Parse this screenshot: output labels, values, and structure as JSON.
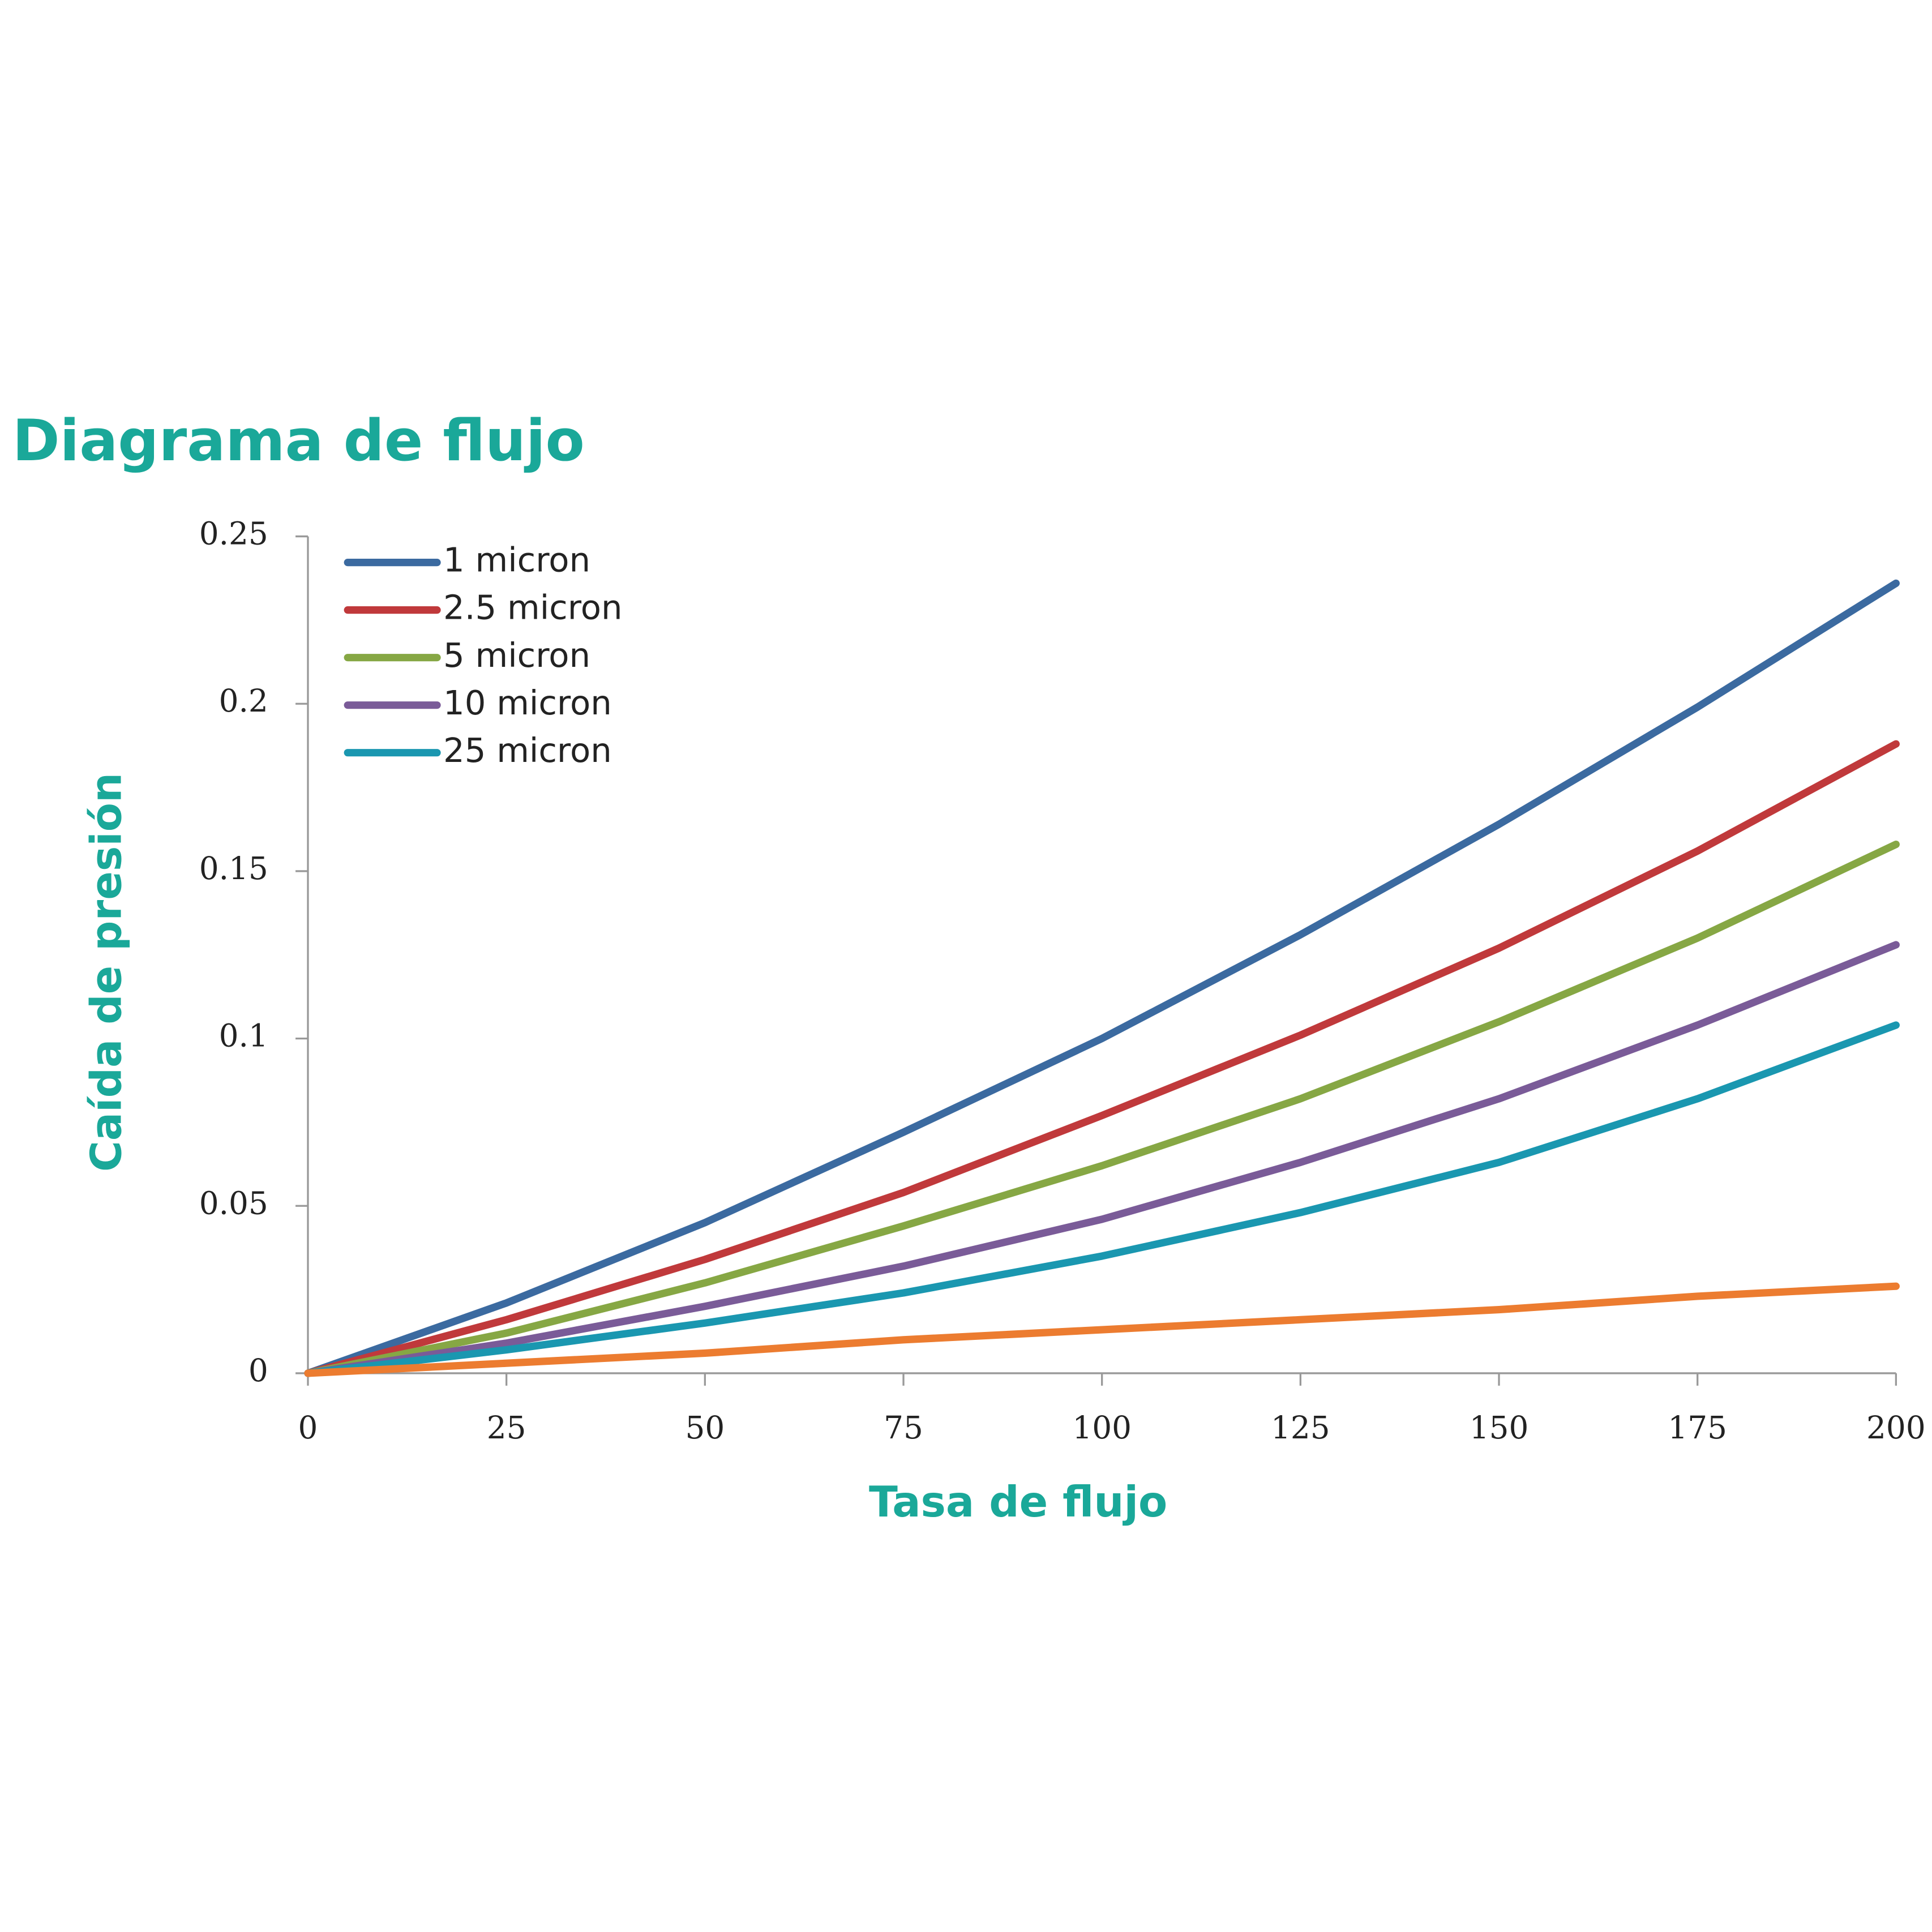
{
  "chart_data": {
    "type": "line",
    "title": "Diagrama de flujo",
    "x_label": "Tasa de flujo",
    "y_label": "Caída de presión",
    "x": [
      0,
      25,
      50,
      75,
      100,
      125,
      150,
      175,
      200
    ],
    "series": [
      {
        "name": "1 micron",
        "color": "#3b6aa0",
        "values": [
          0,
          0.021,
          0.045,
          0.072,
          0.1,
          0.131,
          0.164,
          0.199,
          0.236
        ]
      },
      {
        "name": "2.5 micron",
        "color": "#c0393b",
        "values": [
          0,
          0.016,
          0.034,
          0.054,
          0.077,
          0.101,
          0.127,
          0.156,
          0.188
        ]
      },
      {
        "name": "5 micron",
        "color": "#86a744",
        "values": [
          0,
          0.012,
          0.027,
          0.044,
          0.062,
          0.082,
          0.105,
          0.13,
          0.158
        ]
      },
      {
        "name": "10 micron",
        "color": "#7a5b98",
        "values": [
          0,
          0.009,
          0.02,
          0.032,
          0.046,
          0.063,
          0.082,
          0.104,
          0.128
        ]
      },
      {
        "name": "25 micron",
        "color": "#1a97b0",
        "values": [
          0,
          0.007,
          0.015,
          0.024,
          0.035,
          0.048,
          0.063,
          0.082,
          0.104
        ]
      },
      {
        "color": "#ec7c30",
        "values": [
          0,
          0.003,
          0.006,
          0.01,
          0.013,
          0.016,
          0.019,
          0.023,
          0.026
        ]
      }
    ],
    "xlim": [
      0,
      200
    ],
    "xticks": [
      0,
      25,
      50,
      75,
      100,
      125,
      150,
      175,
      200
    ],
    "ylim": [
      0,
      0.25
    ],
    "yticks": [
      0,
      0.05,
      0.1,
      0.15,
      0.2,
      0.25
    ],
    "grid": false,
    "legend": "upper left"
  }
}
